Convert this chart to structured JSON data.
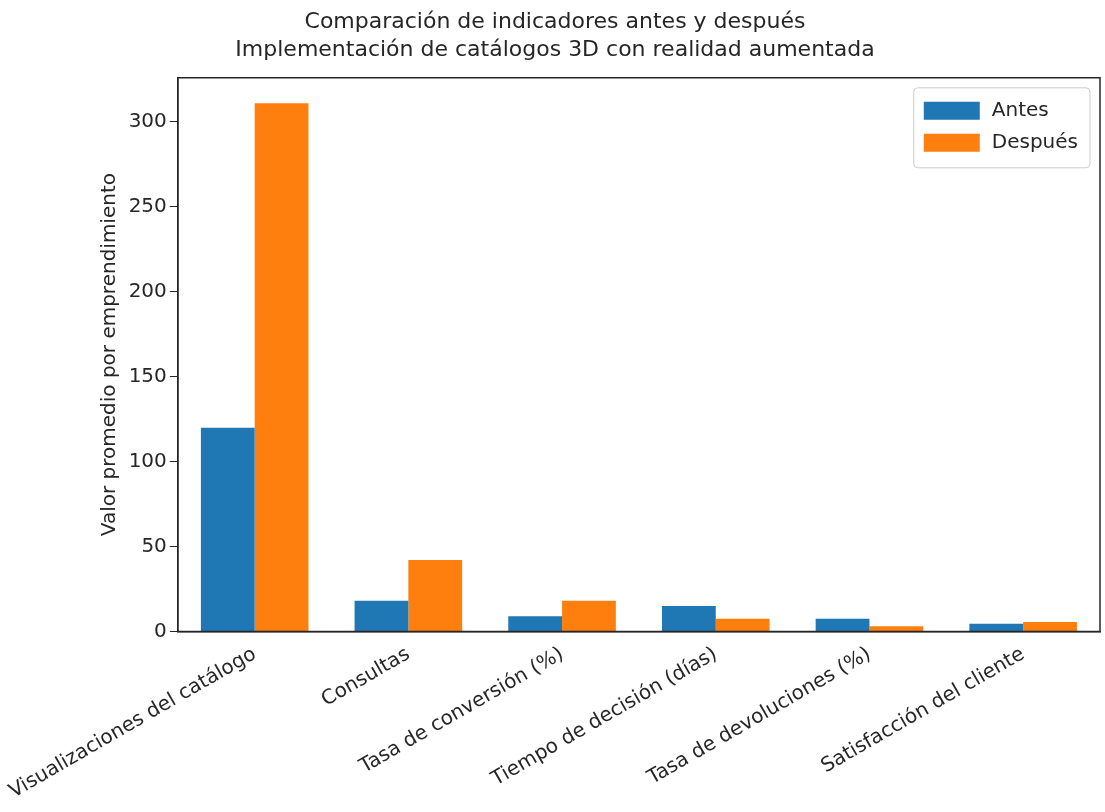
{
  "chart_data": {
    "type": "bar",
    "title": "Comparación de indicadores antes y después",
    "subtitle": "Implementación de catálogos 3D con realidad aumentada",
    "ylabel": "Valor promedio por emprendimiento",
    "categories": [
      "Visualizaciones del catálogo",
      "Consultas",
      "Tasa de conversión (%)",
      "Tiempo de decisión (días)",
      "Tasa de devoluciones (%)",
      "Satisfacción del cliente"
    ],
    "series": [
      {
        "name": "Antes",
        "color": "#1f77b4",
        "values": [
          120,
          18,
          9,
          15,
          7.5,
          4.5
        ]
      },
      {
        "name": "Después",
        "color": "#ff7f0e",
        "values": [
          311,
          42,
          18,
          7.5,
          3,
          5.5
        ]
      }
    ],
    "ylim": [
      0,
      326
    ],
    "yticks": [
      0,
      50,
      100,
      150,
      200,
      250,
      300
    ],
    "legend": "top right",
    "grid": false
  }
}
